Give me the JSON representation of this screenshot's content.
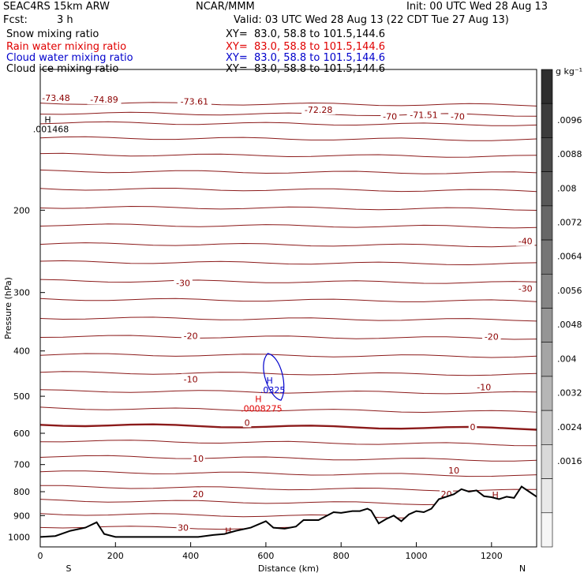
{
  "header": {
    "model": "SEAC4RS 15km ARW",
    "org": "NCAR/MMM",
    "init": "Init: 00 UTC Wed 28 Aug 13",
    "fcst_label": "Fcst:",
    "fcst_value": "3 h",
    "valid": "Valid: 03 UTC Wed 28 Aug 13 (22 CDT Tue 27 Aug 13)",
    "fields": [
      {
        "name": "Snow mixing ratio",
        "xy": "XY=  83.0, 58.8 to 101.5,144.6",
        "color": "#000000"
      },
      {
        "name": "Rain water mixing ratio",
        "xy": "XY=  83.0, 58.8 to 101.5,144.6",
        "color": "#e00000"
      },
      {
        "name": "Cloud water mixing ratio",
        "xy": "XY=  83.0, 58.8 to 101.5,144.6",
        "color": "#0000cc"
      },
      {
        "name": "Cloud ice mixing ratio",
        "xy": "XY=  83.0, 58.8 to 101.5,144.6",
        "color": "#000000"
      }
    ]
  },
  "chart_data": {
    "type": "cross-section",
    "xlabel": "Distance (km)",
    "ylabel": "Pressure (hPa)",
    "x_ticks": [
      0,
      200,
      400,
      600,
      800,
      1000,
      1200
    ],
    "xlim": [
      0,
      1320
    ],
    "y_ticks": [
      200,
      300,
      400,
      500,
      600,
      700,
      800,
      900,
      1000
    ],
    "ylim": [
      100,
      1050
    ],
    "y_scale": "log",
    "endpoints": {
      "left": "S",
      "right": "N"
    },
    "temperature_contours": [
      {
        "label": "-73.48",
        "x": 42,
        "p": 115
      },
      {
        "label": "-74.89",
        "x": 170,
        "p": 116
      },
      {
        "label": "-73.61",
        "x": 410,
        "p": 117
      },
      {
        "label": "-72.28",
        "x": 740,
        "p": 122
      },
      {
        "label": "-70",
        "x": 930,
        "p": 126
      },
      {
        "label": "-71.51",
        "x": 1020,
        "p": 125
      },
      {
        "label": "-70",
        "x": 1110,
        "p": 126
      },
      {
        "label": "-40",
        "x": 1290,
        "p": 233
      },
      {
        "label": "-30",
        "x": 1290,
        "p": 294
      },
      {
        "label": "-30",
        "x": 380,
        "p": 286
      },
      {
        "label": "-20",
        "x": 400,
        "p": 371
      },
      {
        "label": "-20",
        "x": 1200,
        "p": 373
      },
      {
        "label": "-10",
        "x": 400,
        "p": 460
      },
      {
        "label": "-10",
        "x": 1180,
        "p": 478
      },
      {
        "label": "0",
        "x": 550,
        "p": 569
      },
      {
        "label": "0",
        "x": 1150,
        "p": 582
      },
      {
        "label": "10",
        "x": 420,
        "p": 680
      },
      {
        "label": "10",
        "x": 1100,
        "p": 720
      },
      {
        "label": "20",
        "x": 420,
        "p": 810
      },
      {
        "label": "20",
        "x": 1080,
        "p": 810
      },
      {
        "label": "30",
        "x": 380,
        "p": 955
      }
    ],
    "extrema": [
      {
        "label": "H",
        "value": ".001468",
        "x": 20,
        "p": 130,
        "color": "#000000"
      },
      {
        "label": "H",
        "value": ".0325",
        "x": 610,
        "p": 470,
        "color": "#0000cc"
      },
      {
        "label": "H",
        "value": ".0008275",
        "x": 580,
        "p": 515,
        "color": "#e00000"
      },
      {
        "label": "H",
        "value": "36.52",
        "x": 500,
        "p": 985,
        "color": "#8b0000"
      },
      {
        "label": "H",
        "value": "22.75",
        "x": 1210,
        "p": 825,
        "color": "#8b0000"
      }
    ],
    "terrain": {
      "x": [
        0,
        40,
        80,
        120,
        150,
        170,
        200,
        260,
        330,
        390,
        420,
        460,
        490,
        520,
        560,
        600,
        620,
        650,
        680,
        700,
        740,
        780,
        800,
        830,
        850,
        870,
        880,
        900,
        920,
        940,
        960,
        980,
        1000,
        1020,
        1040,
        1060,
        1080,
        1100,
        1120,
        1140,
        1160,
        1180,
        1200,
        1220,
        1240,
        1260,
        1280,
        1300,
        1320
      ],
      "p": [
        1000,
        995,
        970,
        955,
        930,
        985,
        1000,
        1000,
        1000,
        1000,
        1000,
        990,
        985,
        970,
        955,
        925,
        955,
        960,
        950,
        920,
        920,
        885,
        888,
        880,
        880,
        870,
        878,
        935,
        915,
        900,
        925,
        895,
        880,
        885,
        870,
        830,
        820,
        810,
        790,
        800,
        795,
        818,
        822,
        830,
        820,
        825,
        780,
        800,
        820
      ]
    },
    "colorbar": {
      "unit": "g kg⁻¹",
      "labels": [
        ".0096",
        ".0088",
        ".008",
        ".0072",
        ".0064",
        ".0056",
        ".0048",
        ".004",
        ".0032",
        ".0024",
        ".0016"
      ],
      "colors": [
        "#2e2e2e",
        "#3c3c3c",
        "#4a4a4a",
        "#585858",
        "#676767",
        "#767676",
        "#858585",
        "#959595",
        "#a5a5a5",
        "#b6b6b6",
        "#c8c8c8",
        "#d9d9d9",
        "#e9e9e9",
        "#f6f6f6"
      ]
    }
  }
}
